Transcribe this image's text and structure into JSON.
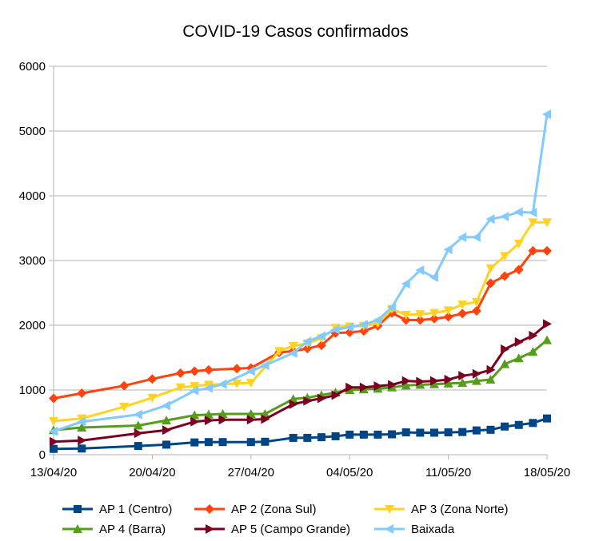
{
  "chart_data": {
    "type": "line",
    "title": "COVID-19 Casos confirmados",
    "xlabel": "",
    "ylabel": "",
    "ylim": [
      0,
      6000
    ],
    "yticks": [
      0,
      1000,
      2000,
      3000,
      4000,
      5000,
      6000
    ],
    "xlim": [
      "2020-04-13",
      "2020-05-18"
    ],
    "xticks": [
      "2020-04-13",
      "2020-04-20",
      "2020-04-27",
      "2020-05-04",
      "2020-05-11",
      "2020-05-18"
    ],
    "xtick_labels": [
      "13/04/20",
      "20/04/20",
      "27/04/20",
      "04/05/20",
      "11/05/20",
      "18/05/20"
    ],
    "grid": "horizontal",
    "legend_position": "bottom",
    "series": [
      {
        "name": "AP 1 (Centro)",
        "color": "#004586",
        "marker": "square",
        "x": [
          "2020-04-13",
          "2020-04-15",
          "2020-04-19",
          "2020-04-21",
          "2020-04-23",
          "2020-04-24",
          "2020-04-25",
          "2020-04-27",
          "2020-04-28",
          "2020-04-30",
          "2020-05-01",
          "2020-05-02",
          "2020-05-03",
          "2020-05-04",
          "2020-05-05",
          "2020-05-06",
          "2020-05-07",
          "2020-05-08",
          "2020-05-09",
          "2020-05-10",
          "2020-05-11",
          "2020-05-12",
          "2020-05-13",
          "2020-05-14",
          "2020-05-15",
          "2020-05-16",
          "2020-05-17",
          "2020-05-18"
        ],
        "values": [
          90,
          95,
          135,
          155,
          190,
          195,
          195,
          195,
          200,
          260,
          260,
          270,
          285,
          310,
          310,
          310,
          315,
          345,
          340,
          340,
          345,
          350,
          375,
          385,
          435,
          460,
          490,
          560
        ]
      },
      {
        "name": "AP 2 (Zona Sul)",
        "color": "#ff420e",
        "marker": "diamond",
        "x": [
          "2020-04-13",
          "2020-04-15",
          "2020-04-18",
          "2020-04-20",
          "2020-04-22",
          "2020-04-23",
          "2020-04-24",
          "2020-04-26",
          "2020-04-27",
          "2020-04-29",
          "2020-04-30",
          "2020-05-01",
          "2020-05-02",
          "2020-05-03",
          "2020-05-04",
          "2020-05-05",
          "2020-05-06",
          "2020-05-07",
          "2020-05-08",
          "2020-05-09",
          "2020-05-10",
          "2020-05-11",
          "2020-05-12",
          "2020-05-13",
          "2020-05-14",
          "2020-05-15",
          "2020-05-16",
          "2020-05-17",
          "2020-05-18"
        ],
        "values": [
          870,
          950,
          1065,
          1170,
          1260,
          1290,
          1310,
          1330,
          1340,
          1580,
          1600,
          1640,
          1690,
          1880,
          1890,
          1910,
          1990,
          2190,
          2080,
          2080,
          2100,
          2130,
          2180,
          2220,
          2650,
          2760,
          2860,
          3150,
          3150
        ]
      },
      {
        "name": "AP 3 (Zona Norte)",
        "color": "#ffd320",
        "marker": "triangle-down",
        "x": [
          "2020-04-13",
          "2020-04-15",
          "2020-04-18",
          "2020-04-20",
          "2020-04-22",
          "2020-04-23",
          "2020-04-24",
          "2020-04-26",
          "2020-04-27",
          "2020-04-29",
          "2020-04-30",
          "2020-05-01",
          "2020-05-02",
          "2020-05-03",
          "2020-05-04",
          "2020-05-05",
          "2020-05-06",
          "2020-05-07",
          "2020-05-08",
          "2020-05-09",
          "2020-05-10",
          "2020-05-11",
          "2020-05-12",
          "2020-05-13",
          "2020-05-14",
          "2020-05-15",
          "2020-05-16",
          "2020-05-17",
          "2020-05-18"
        ],
        "values": [
          520,
          560,
          740,
          880,
          1040,
          1060,
          1080,
          1100,
          1110,
          1600,
          1680,
          1720,
          1800,
          1960,
          1980,
          1990,
          2030,
          2250,
          2160,
          2170,
          2190,
          2230,
          2320,
          2360,
          2880,
          3070,
          3260,
          3590,
          3590
        ]
      },
      {
        "name": "AP 4 (Barra)",
        "color": "#579d1c",
        "marker": "triangle-up",
        "x": [
          "2020-04-13",
          "2020-04-15",
          "2020-04-19",
          "2020-04-21",
          "2020-04-23",
          "2020-04-24",
          "2020-04-25",
          "2020-04-27",
          "2020-04-28",
          "2020-04-30",
          "2020-05-01",
          "2020-05-02",
          "2020-05-03",
          "2020-05-04",
          "2020-05-05",
          "2020-05-06",
          "2020-05-07",
          "2020-05-08",
          "2020-05-09",
          "2020-05-10",
          "2020-05-11",
          "2020-05-12",
          "2020-05-13",
          "2020-05-14",
          "2020-05-15",
          "2020-05-16",
          "2020-05-17",
          "2020-05-18"
        ],
        "values": [
          380,
          420,
          450,
          530,
          610,
          620,
          630,
          630,
          630,
          860,
          880,
          920,
          960,
          1000,
          1010,
          1020,
          1040,
          1070,
          1080,
          1090,
          1100,
          1110,
          1140,
          1160,
          1400,
          1490,
          1590,
          1770
        ]
      },
      {
        "name": "AP 5 (Campo Grande)",
        "color": "#7e0021",
        "marker": "triangle-right",
        "x": [
          "2020-04-13",
          "2020-04-15",
          "2020-04-19",
          "2020-04-21",
          "2020-04-23",
          "2020-04-24",
          "2020-04-25",
          "2020-04-27",
          "2020-04-28",
          "2020-04-30",
          "2020-05-01",
          "2020-05-02",
          "2020-05-03",
          "2020-05-04",
          "2020-05-05",
          "2020-05-06",
          "2020-05-07",
          "2020-05-08",
          "2020-05-09",
          "2020-05-10",
          "2020-05-11",
          "2020-05-12",
          "2020-05-13",
          "2020-05-14",
          "2020-05-15",
          "2020-05-16",
          "2020-05-17",
          "2020-05-18"
        ],
        "values": [
          200,
          220,
          330,
          380,
          510,
          530,
          540,
          540,
          550,
          780,
          830,
          870,
          920,
          1040,
          1040,
          1060,
          1080,
          1140,
          1130,
          1140,
          1160,
          1220,
          1250,
          1310,
          1630,
          1740,
          1840,
          2020
        ]
      },
      {
        "name": "Baixada",
        "color": "#83caff",
        "marker": "triangle-left",
        "x": [
          "2020-04-13",
          "2020-04-15",
          "2020-04-19",
          "2020-04-21",
          "2020-04-23",
          "2020-04-24",
          "2020-04-25",
          "2020-04-27",
          "2020-04-28",
          "2020-04-30",
          "2020-05-01",
          "2020-05-02",
          "2020-05-03",
          "2020-05-04",
          "2020-05-05",
          "2020-05-06",
          "2020-05-07",
          "2020-05-08",
          "2020-05-09",
          "2020-05-10",
          "2020-05-11",
          "2020-05-12",
          "2020-05-13",
          "2020-05-14",
          "2020-05-15",
          "2020-05-16",
          "2020-05-17",
          "2020-05-18"
        ],
        "values": [
          360,
          510,
          620,
          760,
          990,
          1030,
          1090,
          1290,
          1380,
          1570,
          1750,
          1830,
          1930,
          1970,
          2010,
          2080,
          2280,
          2640,
          2850,
          2740,
          3170,
          3360,
          3360,
          3640,
          3680,
          3750,
          3740,
          5260
        ]
      }
    ]
  }
}
